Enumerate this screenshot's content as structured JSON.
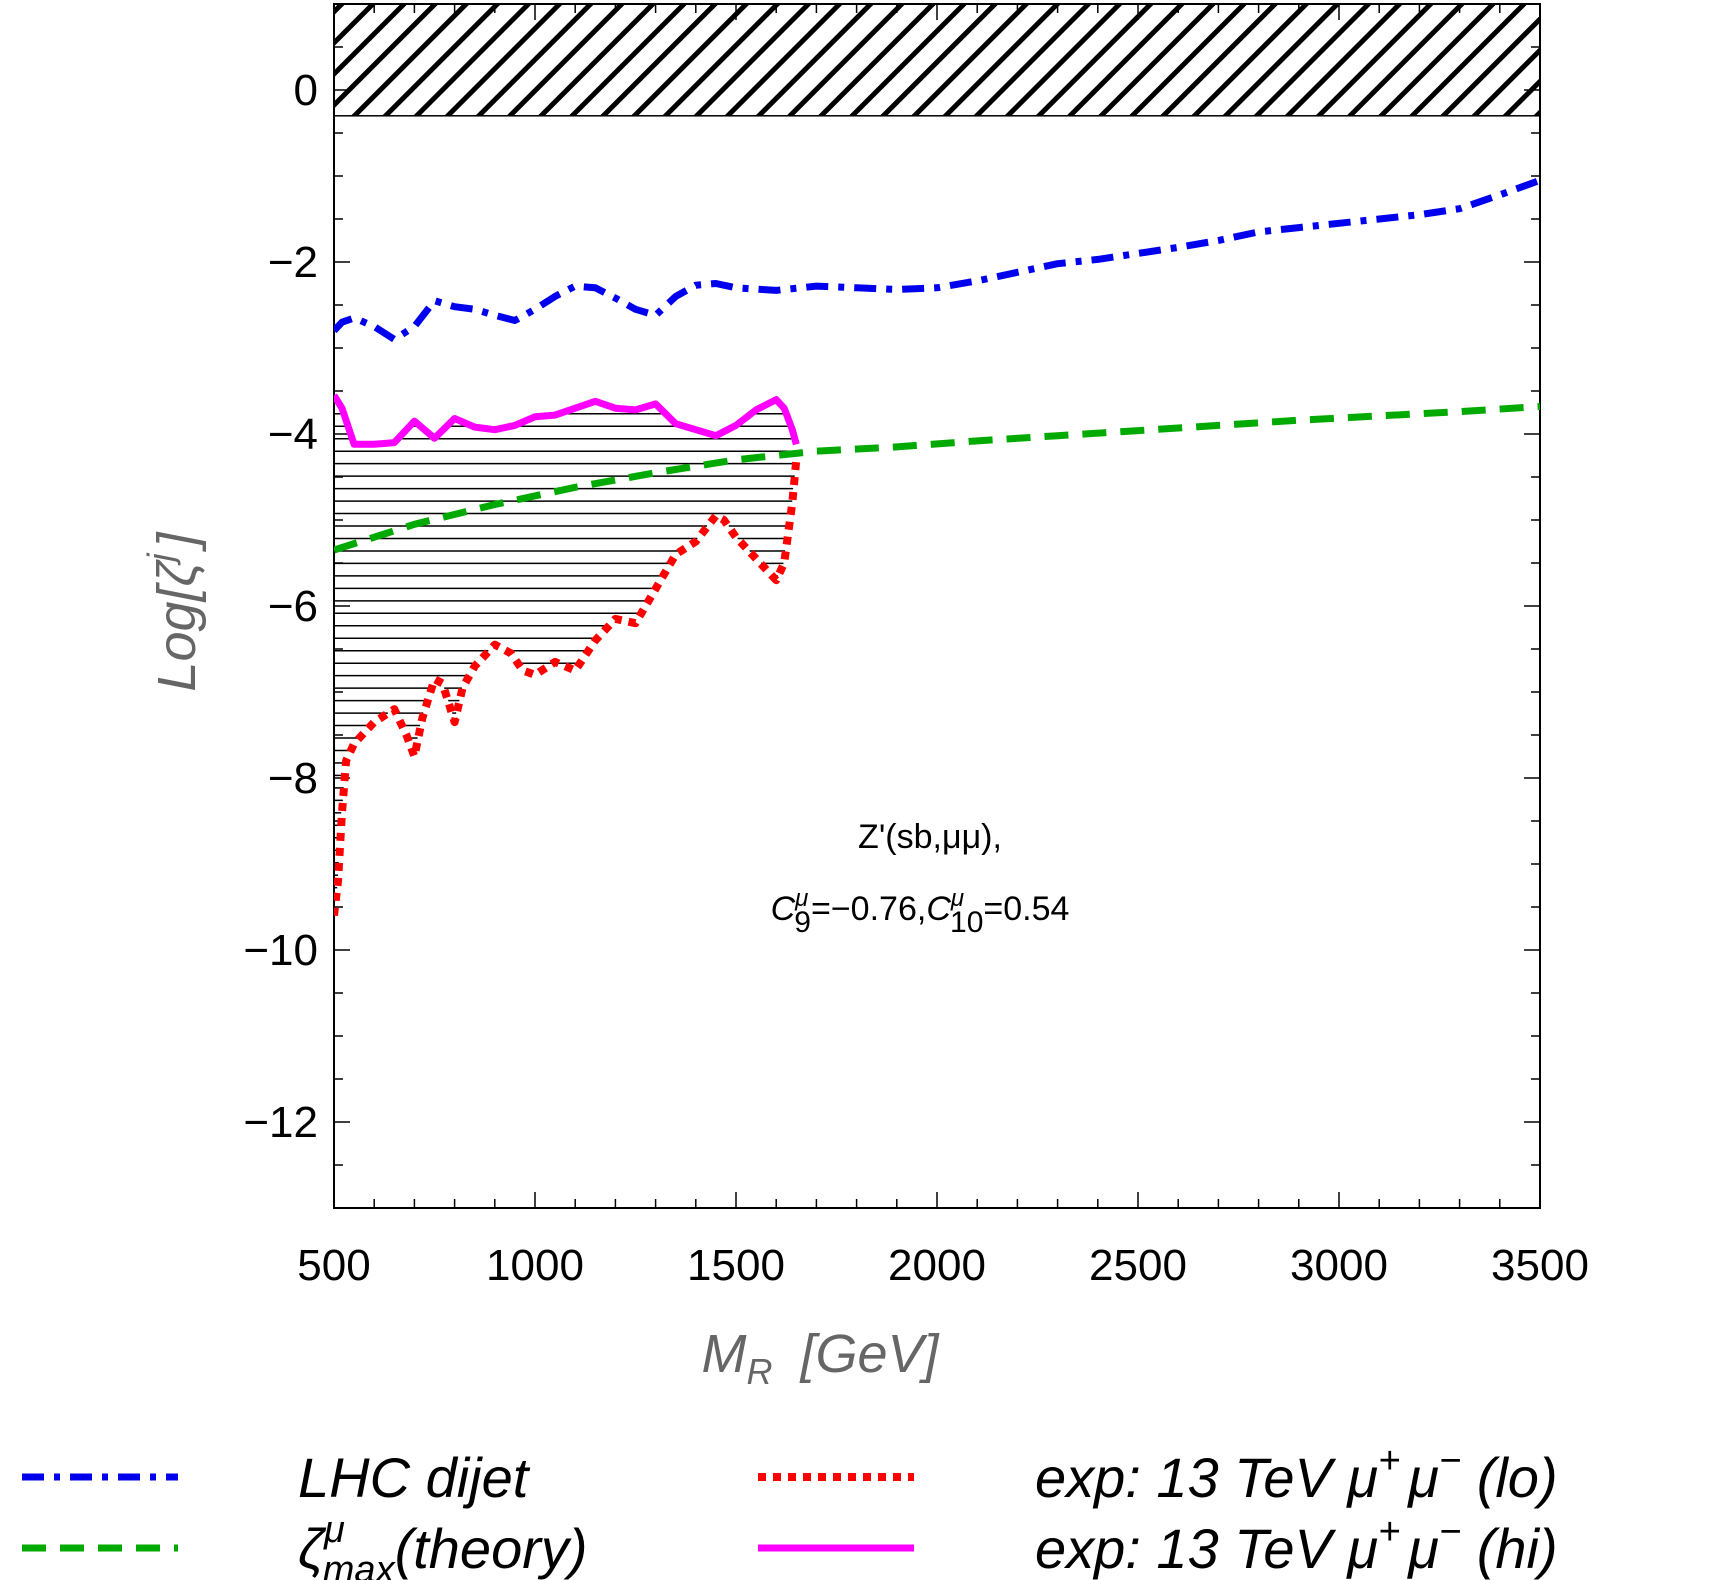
{
  "chart_data": {
    "type": "line",
    "xlabel_base": "M",
    "xlabel_sub": "R",
    "xlabel_unit": "[GeV]",
    "ylabel": "Log[ζ",
    "ylabel_sup": "j",
    "ylabel_close": "]",
    "xlim": [
      500,
      3500
    ],
    "ylim": [
      -13,
      1
    ],
    "x_ticks": [
      500,
      1000,
      1500,
      2000,
      2500,
      3000,
      3500
    ],
    "y_ticks": [
      0,
      -2,
      -4,
      -6,
      -8,
      -10,
      -12
    ],
    "x_tick_labels": [
      "500",
      "1000",
      "1500",
      "2000",
      "2500",
      "3000",
      "3500"
    ],
    "y_tick_labels": [
      "0",
      "−2",
      "−4",
      "−6",
      "−8",
      "−10",
      "−12"
    ],
    "excluded_region": {
      "y_from": -0.3,
      "y_to": 1
    },
    "annotation": {
      "line1": "Z'(sb,μμ),",
      "c9_base": "C",
      "c9_sup": "μ",
      "c9_sub": "9",
      "c9_val": "=−0.76,",
      "c10_base": "C",
      "c10_sup": "μ",
      "c10_sub": "10",
      "c10_val": "=0.54"
    },
    "series": [
      {
        "key": "dijet",
        "color": "#0000ee",
        "style": "dash-dot",
        "x": [
          500,
          520,
          550,
          600,
          650,
          700,
          750,
          800,
          850,
          900,
          950,
          1000,
          1050,
          1100,
          1150,
          1200,
          1250,
          1300,
          1350,
          1400,
          1450,
          1500,
          1600,
          1700,
          1800,
          1900,
          2000,
          2100,
          2200,
          2300,
          2400,
          2500,
          2600,
          2700,
          2800,
          2900,
          3000,
          3100,
          3200,
          3300,
          3400,
          3500
        ],
        "y": [
          -2.8,
          -2.7,
          -2.65,
          -2.75,
          -2.9,
          -2.75,
          -2.45,
          -2.52,
          -2.55,
          -2.62,
          -2.68,
          -2.55,
          -2.4,
          -2.28,
          -2.3,
          -2.42,
          -2.55,
          -2.62,
          -2.4,
          -2.27,
          -2.25,
          -2.3,
          -2.33,
          -2.28,
          -2.3,
          -2.32,
          -2.3,
          -2.22,
          -2.12,
          -2.02,
          -1.97,
          -1.9,
          -1.83,
          -1.75,
          -1.65,
          -1.6,
          -1.55,
          -1.5,
          -1.45,
          -1.38,
          -1.22,
          -1.05
        ]
      },
      {
        "key": "theory",
        "color": "#00aa00",
        "style": "dashed",
        "x": [
          500,
          700,
          900,
          1100,
          1300,
          1500,
          1700,
          1900,
          2100,
          2300,
          2500,
          2700,
          2900,
          3100,
          3300,
          3500
        ],
        "y": [
          -5.35,
          -5.05,
          -4.82,
          -4.62,
          -4.45,
          -4.3,
          -4.2,
          -4.15,
          -4.08,
          -4.02,
          -3.96,
          -3.9,
          -3.84,
          -3.79,
          -3.74,
          -3.68
        ]
      },
      {
        "key": "lo",
        "color": "#ff0000",
        "style": "dotted",
        "x": [
          500,
          510,
          520,
          530,
          550,
          600,
          650,
          680,
          700,
          720,
          750,
          770,
          800,
          820,
          850,
          900,
          940,
          970,
          1000,
          1050,
          1100,
          1150,
          1200,
          1250,
          1300,
          1350,
          1400,
          1450,
          1470,
          1500,
          1530,
          1560,
          1600,
          1620,
          1640,
          1650
        ],
        "y": [
          -9.6,
          -9.2,
          -8.4,
          -7.8,
          -7.6,
          -7.35,
          -7.2,
          -7.5,
          -7.75,
          -7.3,
          -6.85,
          -6.9,
          -7.35,
          -6.95,
          -6.7,
          -6.45,
          -6.55,
          -6.75,
          -6.8,
          -6.65,
          -6.75,
          -6.4,
          -6.15,
          -6.2,
          -5.8,
          -5.4,
          -5.25,
          -4.95,
          -5.0,
          -5.2,
          -5.35,
          -5.5,
          -5.7,
          -5.5,
          -4.8,
          -4.3
        ]
      },
      {
        "key": "hi",
        "color": "#ff00ff",
        "style": "solid",
        "x": [
          500,
          520,
          550,
          600,
          650,
          700,
          750,
          800,
          850,
          900,
          950,
          1000,
          1050,
          1100,
          1150,
          1200,
          1250,
          1300,
          1350,
          1400,
          1450,
          1500,
          1550,
          1600,
          1620,
          1640,
          1650
        ],
        "y": [
          -3.55,
          -3.7,
          -4.12,
          -4.12,
          -4.1,
          -3.85,
          -4.05,
          -3.82,
          -3.92,
          -3.95,
          -3.9,
          -3.8,
          -3.78,
          -3.7,
          -3.62,
          -3.7,
          -3.72,
          -3.65,
          -3.88,
          -3.95,
          -4.02,
          -3.9,
          -3.72,
          -3.6,
          -3.7,
          -3.95,
          -4.12
        ]
      }
    ],
    "legend": [
      {
        "key": "dijet",
        "label": "LHC dijet"
      },
      {
        "key": "theory",
        "label_base": "ζ",
        "label_sup": "μ",
        "label_sub": "max",
        "label_rest": "(theory)"
      },
      {
        "key": "lo",
        "label": "exp: 13 TeV μ",
        "label_sup1": "+",
        "label_mid": "μ",
        "label_sup2": "−",
        "label_end": " (lo)"
      },
      {
        "key": "hi",
        "label": "exp: 13 TeV μ",
        "label_sup1": "+",
        "label_mid": "μ",
        "label_sup2": "−",
        "label_end": " (hi)"
      }
    ]
  }
}
